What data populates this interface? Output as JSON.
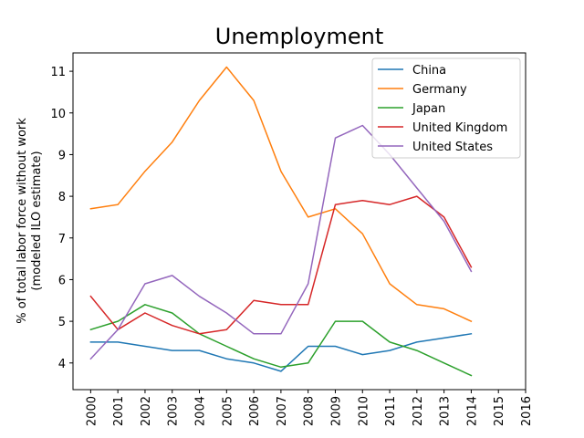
{
  "chart_data": {
    "type": "line",
    "title": "Unemployment",
    "xlabel": "",
    "ylabel_line1": "% of total labor force without work",
    "ylabel_line2": "(modeled ILO estimate)",
    "x": [
      2000,
      2001,
      2002,
      2003,
      2004,
      2005,
      2006,
      2007,
      2008,
      2009,
      2010,
      2011,
      2012,
      2013,
      2014
    ],
    "x_ticks": [
      "2000",
      "2001",
      "2002",
      "2003",
      "2004",
      "2005",
      "2006",
      "2007",
      "2008",
      "2009",
      "2010",
      "2011",
      "2012",
      "2013",
      "2014",
      "2015",
      "2016"
    ],
    "xlim": [
      1999.35,
      2016.0
    ],
    "y_ticks": [
      4,
      5,
      6,
      7,
      8,
      9,
      10,
      11
    ],
    "ylim": [
      3.36,
      11.44
    ],
    "grid": false,
    "legend_position": "top-right",
    "series": [
      {
        "name": "China",
        "color": "#1f77b4",
        "values": [
          4.5,
          4.5,
          4.4,
          4.3,
          4.3,
          4.1,
          4.0,
          3.8,
          4.4,
          4.4,
          4.2,
          4.3,
          4.5,
          4.6,
          4.7
        ]
      },
      {
        "name": "Germany",
        "color": "#ff7f0e",
        "values": [
          7.7,
          7.8,
          8.6,
          9.3,
          10.3,
          11.1,
          10.3,
          8.6,
          7.5,
          7.7,
          7.1,
          5.9,
          5.4,
          5.3,
          5.0
        ]
      },
      {
        "name": "Japan",
        "color": "#2ca02c",
        "values": [
          4.8,
          5.0,
          5.4,
          5.2,
          4.7,
          4.4,
          4.1,
          3.9,
          4.0,
          5.0,
          5.0,
          4.5,
          4.3,
          4.0,
          3.7
        ]
      },
      {
        "name": "United Kingdom",
        "color": "#d62728",
        "values": [
          5.6,
          4.8,
          5.2,
          4.9,
          4.7,
          4.8,
          5.5,
          5.4,
          5.4,
          7.8,
          7.9,
          7.8,
          8.0,
          7.5,
          6.3
        ]
      },
      {
        "name": "United States",
        "color": "#9467bd",
        "values": [
          4.1,
          4.8,
          5.9,
          6.1,
          5.6,
          5.2,
          4.7,
          4.7,
          5.9,
          9.4,
          9.7,
          9.0,
          8.2,
          7.4,
          6.2
        ]
      }
    ]
  }
}
